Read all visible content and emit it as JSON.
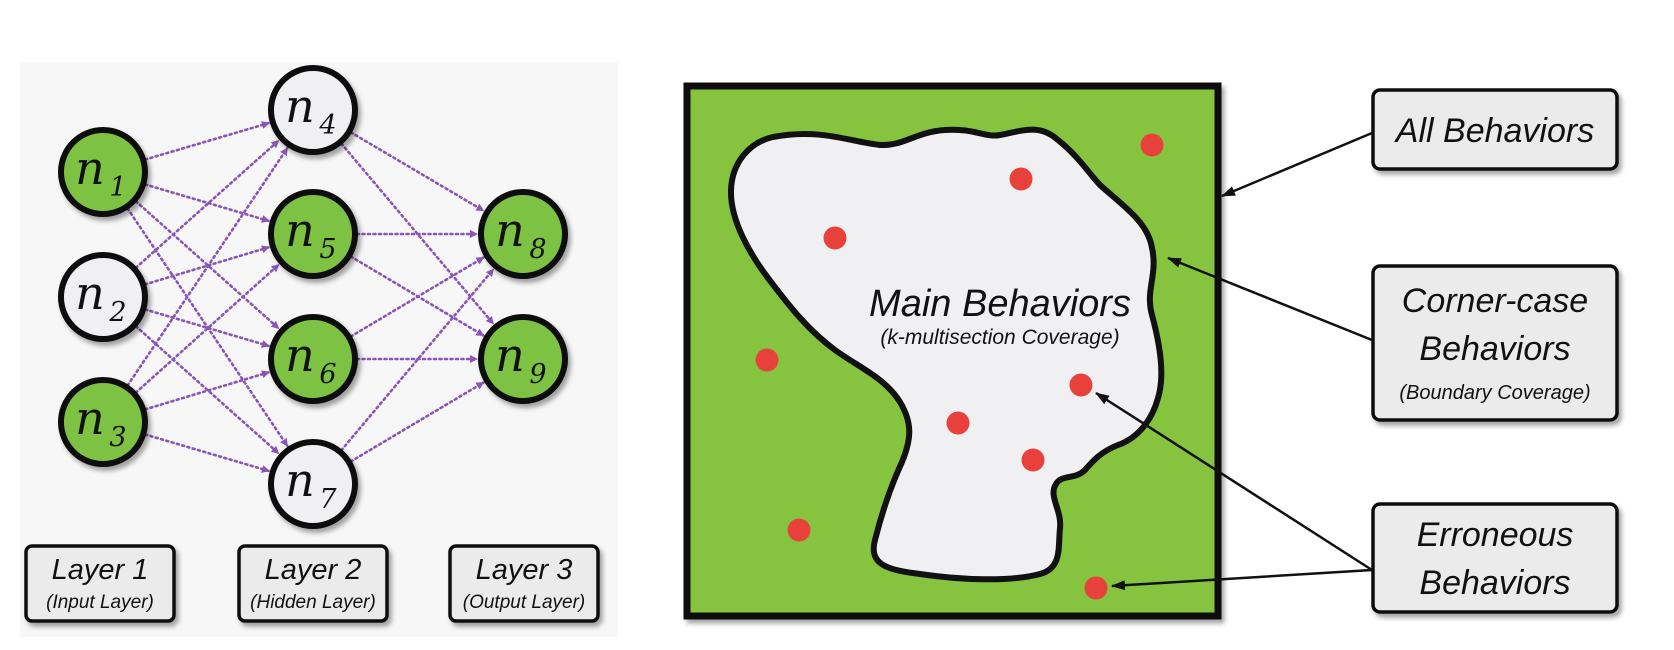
{
  "colors": {
    "active_node": "#7dc243",
    "inactive_node": "#f0f0f2",
    "edge": "#8a55b5",
    "space": "#86c440",
    "main_region": "#f0f0f2",
    "error_dot": "#e8403a",
    "label_box": "#ebebeb"
  },
  "network": {
    "nodes": [
      {
        "name": "n",
        "sub": "1",
        "active": true
      },
      {
        "name": "n",
        "sub": "2",
        "active": false
      },
      {
        "name": "n",
        "sub": "3",
        "active": true
      },
      {
        "name": "n",
        "sub": "4",
        "active": false
      },
      {
        "name": "n",
        "sub": "5",
        "active": true
      },
      {
        "name": "n",
        "sub": "6",
        "active": true
      },
      {
        "name": "n",
        "sub": "7",
        "active": false
      },
      {
        "name": "n",
        "sub": "8",
        "active": true
      },
      {
        "name": "n",
        "sub": "9",
        "active": true
      }
    ],
    "layers": [
      {
        "title": "Layer 1",
        "subtitle": "(Input Layer)"
      },
      {
        "title": "Layer 2",
        "subtitle": "(Hidden Layer)"
      },
      {
        "title": "Layer 3",
        "subtitle": "(Output Layer)"
      }
    ]
  },
  "behavior_space": {
    "main_title": "Main Behaviors",
    "main_subtitle": "(k-multisection Coverage)"
  },
  "callouts": [
    {
      "lines": [
        "All Behaviors"
      ],
      "subtitle": ""
    },
    {
      "lines": [
        "Corner-case",
        "Behaviors"
      ],
      "subtitle": "(Boundary Coverage)"
    },
    {
      "lines": [
        "Erroneous",
        "Behaviors"
      ],
      "subtitle": ""
    }
  ]
}
